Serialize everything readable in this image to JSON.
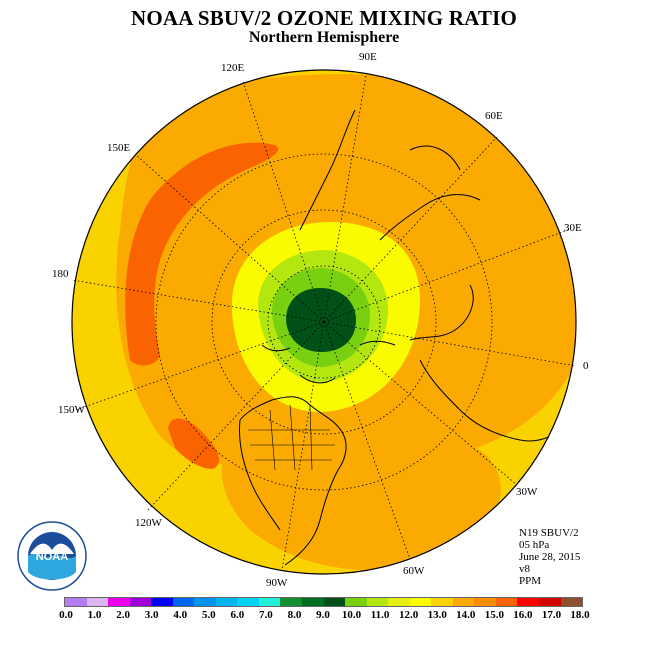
{
  "title": "NOAA SBUV/2 OZONE MIXING RATIO",
  "subtitle": "Northern Hemisphere",
  "longitude_labels": [
    {
      "id": "lon-120e",
      "text": "120E"
    },
    {
      "id": "lon-90e",
      "text": "90E"
    },
    {
      "id": "lon-60e",
      "text": "60E"
    },
    {
      "id": "lon-150e",
      "text": "150E"
    },
    {
      "id": "lon-30e",
      "text": "30E"
    },
    {
      "id": "lon-180",
      "text": "180"
    },
    {
      "id": "lon-0",
      "text": "0"
    },
    {
      "id": "lon-150w",
      "text": "150W"
    },
    {
      "id": "lon-30w",
      "text": "30W"
    },
    {
      "id": "lon-120w",
      "text": "120W"
    },
    {
      "id": "lon-60w",
      "text": "60W"
    },
    {
      "id": "lon-90w",
      "text": "90W"
    }
  ],
  "info": {
    "satellite": "N19 SBUV/2",
    "pressure": "05 hPa",
    "date": "June 28, 2015",
    "version": "v8",
    "units": "PPM"
  },
  "logo": {
    "text": "NOAA",
    "icon": "noaa-logo-icon"
  },
  "colorbar": {
    "colors": [
      "#b57cf0",
      "#dcb4f0",
      "#ee00ee",
      "#a000d8",
      "#0000f0",
      "#0064f0",
      "#0096f0",
      "#00b4f0",
      "#00d2f0",
      "#20f0d8",
      "#109030",
      "#007020",
      "#005018",
      "#78d010",
      "#b4e610",
      "#e6f010",
      "#fafa00",
      "#fad200",
      "#faaa00",
      "#fa8c00",
      "#fa6400",
      "#fa0000",
      "#d20000",
      "#8c5030"
    ],
    "ticks": [
      "0.0",
      "1.0",
      "2.0",
      "3.0",
      "4.0",
      "5.0",
      "6.0",
      "7.0",
      "8.0",
      "9.0",
      "10.0",
      "11.0",
      "12.0",
      "13.0",
      "14.0",
      "15.0",
      "16.0",
      "17.0",
      "18.0"
    ]
  }
}
